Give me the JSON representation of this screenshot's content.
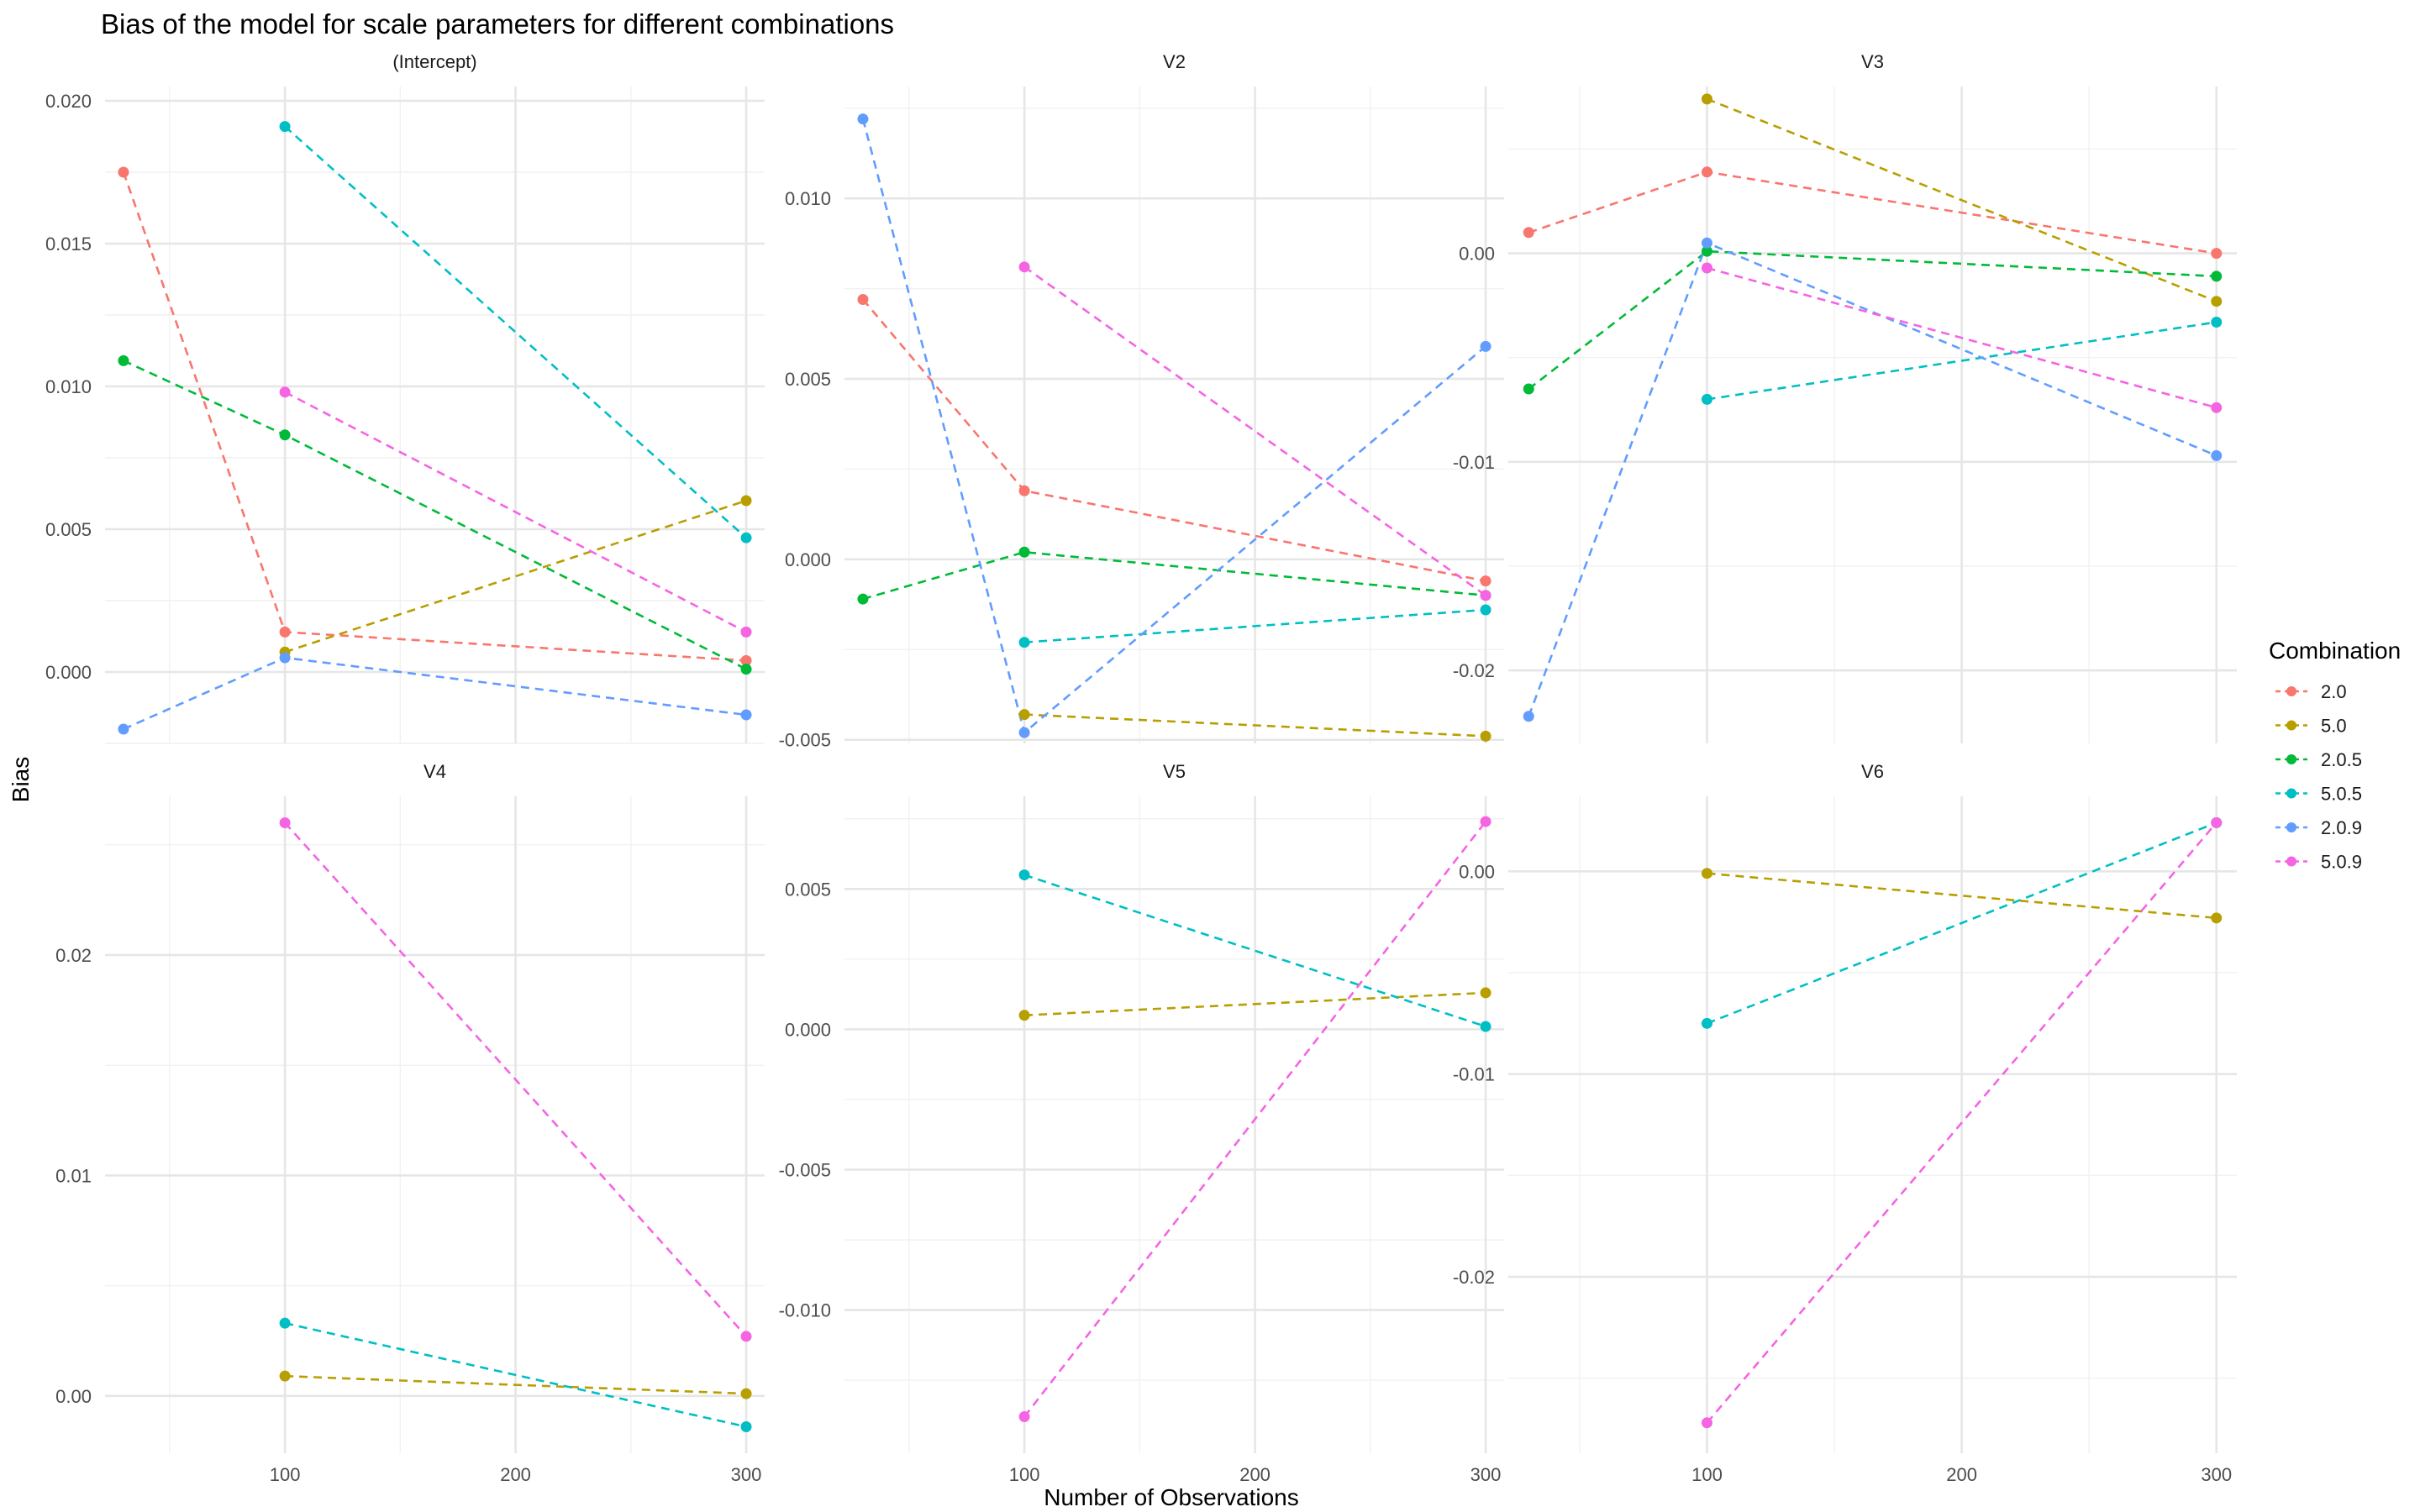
{
  "title": "Bias of the model for scale parameters for different combinations",
  "xlabel": "Number of Observations",
  "ylabel": "Bias",
  "legend": {
    "title": "Combination",
    "position": "right",
    "items": [
      {
        "label": "2.0",
        "color": "#F8766D"
      },
      {
        "label": "5.0",
        "color": "#B79F00"
      },
      {
        "label": "2.0.5",
        "color": "#00BA38"
      },
      {
        "label": "5.0.5",
        "color": "#00BFC4"
      },
      {
        "label": "2.0.9",
        "color": "#619CFF"
      },
      {
        "label": "5.0.9",
        "color": "#F564E3"
      }
    ]
  },
  "chart_data": {
    "type": "line",
    "style": "dashed lines with points, faceted small multiples (free y scales, shared x)",
    "grid": true,
    "x_ticks": [
      "100",
      "200",
      "300"
    ],
    "xlim": [
      22,
      308
    ],
    "panels": [
      {
        "label": "(Intercept)",
        "ylim": [
          -0.0025,
          0.0205
        ],
        "y_ticks": [
          "0.000",
          "0.005",
          "0.010",
          "0.015",
          "0.020"
        ],
        "series": [
          {
            "name": "2.0",
            "x": [
              30,
              100,
              300
            ],
            "y": [
              0.0175,
              0.0014,
              0.0004
            ]
          },
          {
            "name": "5.0",
            "x": [
              100,
              300
            ],
            "y": [
              0.0007,
              0.006
            ]
          },
          {
            "name": "2.0.5",
            "x": [
              30,
              100,
              300
            ],
            "y": [
              0.0109,
              0.0083,
              0.0001
            ]
          },
          {
            "name": "5.0.5",
            "x": [
              100,
              300
            ],
            "y": [
              0.0191,
              0.0047
            ]
          },
          {
            "name": "2.0.9",
            "x": [
              30,
              100,
              300
            ],
            "y": [
              -0.002,
              0.0005,
              -0.0015
            ]
          },
          {
            "name": "5.0.9",
            "x": [
              100,
              300
            ],
            "y": [
              0.0098,
              0.0014
            ]
          }
        ]
      },
      {
        "label": "V2",
        "ylim": [
          -0.0051,
          0.0131
        ],
        "y_ticks": [
          "-0.005",
          "0.000",
          "0.005",
          "0.010"
        ],
        "series": [
          {
            "name": "2.0",
            "x": [
              30,
              100,
              300
            ],
            "y": [
              0.0072,
              0.0019,
              -0.0006
            ]
          },
          {
            "name": "5.0",
            "x": [
              100,
              300
            ],
            "y": [
              -0.0043,
              -0.0049
            ]
          },
          {
            "name": "2.0.5",
            "x": [
              30,
              100,
              300
            ],
            "y": [
              -0.0011,
              0.0002,
              -0.001
            ]
          },
          {
            "name": "5.0.5",
            "x": [
              100,
              300
            ],
            "y": [
              -0.0023,
              -0.0014
            ]
          },
          {
            "name": "2.0.9",
            "x": [
              30,
              100,
              300
            ],
            "y": [
              0.0122,
              -0.0048,
              0.0059
            ]
          },
          {
            "name": "5.0.9",
            "x": [
              100,
              300
            ],
            "y": [
              0.0081,
              -0.001
            ]
          }
        ]
      },
      {
        "label": "V3",
        "ylim": [
          -0.0235,
          0.008
        ],
        "y_ticks": [
          "-0.02",
          "-0.01",
          "0.00"
        ],
        "series": [
          {
            "name": "2.0",
            "x": [
              30,
              100,
              300
            ],
            "y": [
              0.001,
              0.0039,
              0.0
            ]
          },
          {
            "name": "5.0",
            "x": [
              100,
              300
            ],
            "y": [
              0.0074,
              -0.0023
            ]
          },
          {
            "name": "2.0.5",
            "x": [
              30,
              100,
              300
            ],
            "y": [
              -0.0065,
              0.0001,
              -0.0011
            ]
          },
          {
            "name": "5.0.5",
            "x": [
              100,
              300
            ],
            "y": [
              -0.007,
              -0.0033
            ]
          },
          {
            "name": "2.0.9",
            "x": [
              30,
              100,
              300
            ],
            "y": [
              -0.0222,
              0.0005,
              -0.0097
            ]
          },
          {
            "name": "5.0.9",
            "x": [
              100,
              300
            ],
            "y": [
              -0.0007,
              -0.0074
            ]
          }
        ]
      },
      {
        "label": "V4",
        "ylim": [
          -0.0026,
          0.0272
        ],
        "y_ticks": [
          "0.00",
          "0.01",
          "0.02"
        ],
        "series": [
          {
            "name": "5.0",
            "x": [
              100,
              300
            ],
            "y": [
              0.0009,
              0.0001
            ]
          },
          {
            "name": "5.0.5",
            "x": [
              100,
              300
            ],
            "y": [
              0.0033,
              -0.0014
            ]
          },
          {
            "name": "5.0.9",
            "x": [
              100,
              300
            ],
            "y": [
              0.026,
              0.0027
            ]
          }
        ]
      },
      {
        "label": "V5",
        "ylim": [
          -0.0151,
          0.0083
        ],
        "y_ticks": [
          "-0.010",
          "-0.005",
          "0.000",
          "0.005"
        ],
        "series": [
          {
            "name": "5.0",
            "x": [
              100,
              300
            ],
            "y": [
              0.0005,
              0.0013
            ]
          },
          {
            "name": "5.0.5",
            "x": [
              100,
              300
            ],
            "y": [
              0.0055,
              0.0001
            ]
          },
          {
            "name": "5.0.9",
            "x": [
              100,
              300
            ],
            "y": [
              -0.0138,
              0.0074
            ]
          }
        ]
      },
      {
        "label": "V6",
        "ylim": [
          -0.0287,
          0.0037
        ],
        "y_ticks": [
          "-0.02",
          "-0.01",
          "0.00"
        ],
        "series": [
          {
            "name": "5.0",
            "x": [
              100,
              300
            ],
            "y": [
              -0.0001,
              -0.0023
            ]
          },
          {
            "name": "5.0.5",
            "x": [
              100,
              300
            ],
            "y": [
              -0.0075,
              0.0024
            ]
          },
          {
            "name": "5.0.9",
            "x": [
              100,
              300
            ],
            "y": [
              -0.0272,
              0.0024
            ]
          }
        ]
      }
    ]
  }
}
